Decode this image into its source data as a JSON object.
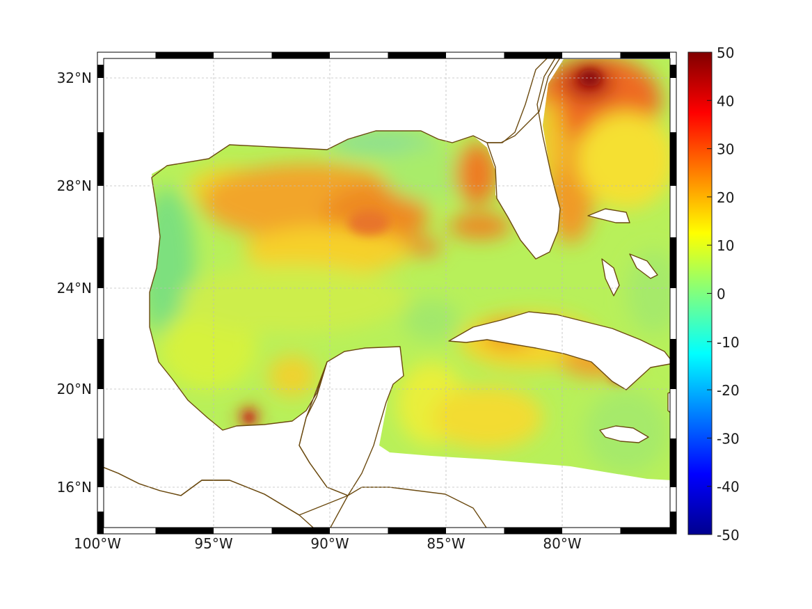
{
  "map": {
    "lon_ticks": [
      "100°W",
      "95°W",
      "90°W",
      "85°W",
      "80°W"
    ],
    "lat_ticks": [
      "32°N",
      "28°N",
      "24°N",
      "20°N",
      "16°N"
    ],
    "lon_range": [
      -100,
      -75.3
    ],
    "lat_range": [
      14.3,
      33.0
    ],
    "grid": true,
    "coastline_color": "#6b4a10"
  },
  "colorbar": {
    "range": [
      -50,
      50
    ],
    "ticks": [
      "50",
      "40",
      "30",
      "20",
      "10",
      "0",
      "-10",
      "-20",
      "-30",
      "-40",
      "-50"
    ],
    "colormap": "jet"
  }
}
